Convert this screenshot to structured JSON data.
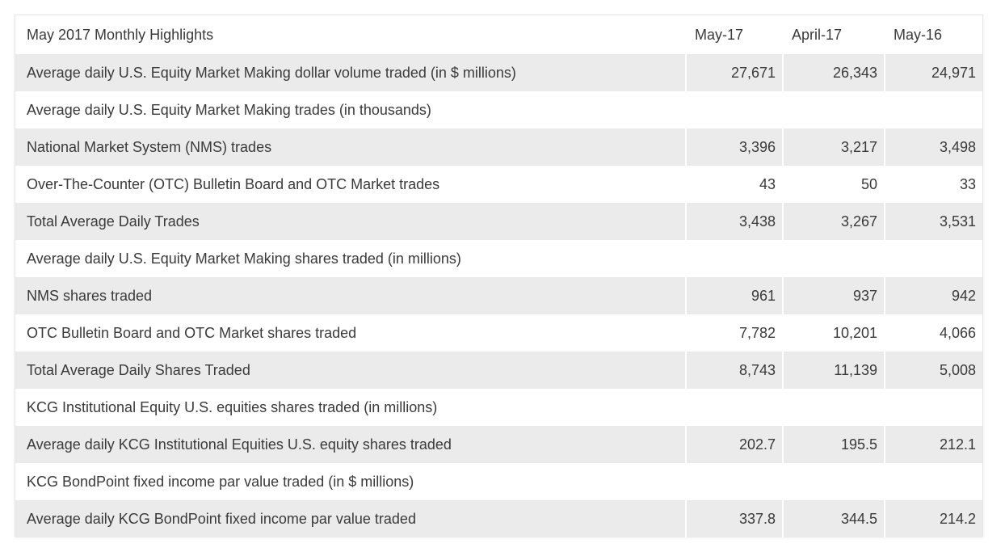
{
  "table": {
    "title": "May 2017 Monthly Highlights",
    "columns": [
      "May-17",
      "April-17",
      "May-16"
    ],
    "rows": [
      {
        "label": "Average daily U.S. Equity Market Making dollar volume traded (in $ millions)",
        "values": [
          "27,671",
          "26,343",
          "24,971"
        ]
      },
      {
        "label": "Average daily U.S. Equity Market Making trades (in thousands)",
        "values": [
          "",
          "",
          ""
        ]
      },
      {
        "label": "National Market System (NMS) trades",
        "values": [
          "3,396",
          "3,217",
          "3,498"
        ]
      },
      {
        "label": "Over-The-Counter (OTC) Bulletin Board and OTC Market trades",
        "values": [
          "43",
          "50",
          "33"
        ]
      },
      {
        "label": "Total Average Daily Trades",
        "values": [
          "3,438",
          "3,267",
          "3,531"
        ]
      },
      {
        "label": "Average daily U.S. Equity Market Making shares traded (in millions)",
        "values": [
          "",
          "",
          ""
        ]
      },
      {
        "label": "NMS shares traded",
        "values": [
          "961",
          "937",
          "942"
        ]
      },
      {
        "label": "OTC Bulletin Board and OTC Market shares traded",
        "values": [
          "7,782",
          "10,201",
          "4,066"
        ]
      },
      {
        "label": "Total Average Daily Shares Traded",
        "values": [
          "8,743",
          "11,139",
          "5,008"
        ]
      },
      {
        "label": "KCG Institutional Equity U.S. equities shares traded (in millions)",
        "values": [
          "",
          "",
          ""
        ]
      },
      {
        "label": "Average daily KCG Institutional Equities U.S. equity shares traded",
        "values": [
          "202.7",
          "195.5",
          "212.1"
        ]
      },
      {
        "label": "KCG BondPoint fixed income par value traded (in $ millions)",
        "values": [
          "",
          "",
          ""
        ]
      },
      {
        "label": "Average daily KCG BondPoint fixed income par value traded",
        "values": [
          "337.8",
          "344.5",
          "214.2"
        ]
      }
    ]
  }
}
